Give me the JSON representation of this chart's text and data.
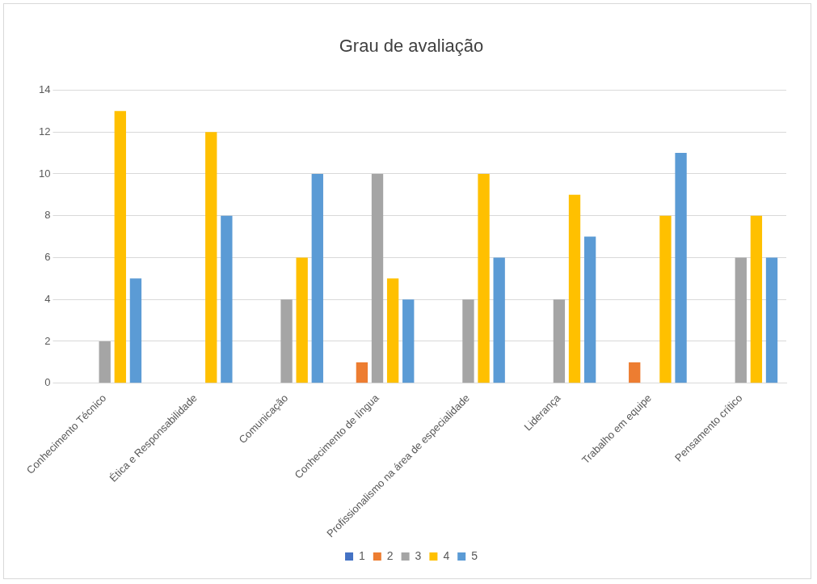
{
  "chart_data": {
    "type": "bar",
    "title": "Grau de avaliação",
    "categories": [
      "Conhecimento Técnico",
      "Ética e Responsabilidade",
      "Comunicação",
      "Conhecimento de língua",
      "Profissionalismo na área de especialidade",
      "Liderança",
      "Trabalho em equipe",
      "Pensamento crítico"
    ],
    "series": [
      {
        "name": "1",
        "color": "#4472c4",
        "values": [
          0,
          0,
          0,
          0,
          0,
          0,
          0,
          0
        ]
      },
      {
        "name": "2",
        "color": "#ed7d31",
        "values": [
          0,
          0,
          0,
          1,
          0,
          0,
          1,
          0
        ]
      },
      {
        "name": "3",
        "color": "#a5a5a5",
        "values": [
          2,
          0,
          4,
          10,
          4,
          4,
          0,
          6
        ]
      },
      {
        "name": "4",
        "color": "#ffc000",
        "values": [
          13,
          12,
          6,
          5,
          10,
          9,
          8,
          8
        ]
      },
      {
        "name": "5",
        "color": "#5b9bd5",
        "values": [
          5,
          8,
          10,
          4,
          6,
          7,
          11,
          6
        ]
      }
    ],
    "ylim": [
      0,
      14
    ],
    "yticks": [
      0,
      2,
      4,
      6,
      8,
      10,
      12,
      14
    ],
    "grid": "y",
    "legend": "bottom"
  }
}
